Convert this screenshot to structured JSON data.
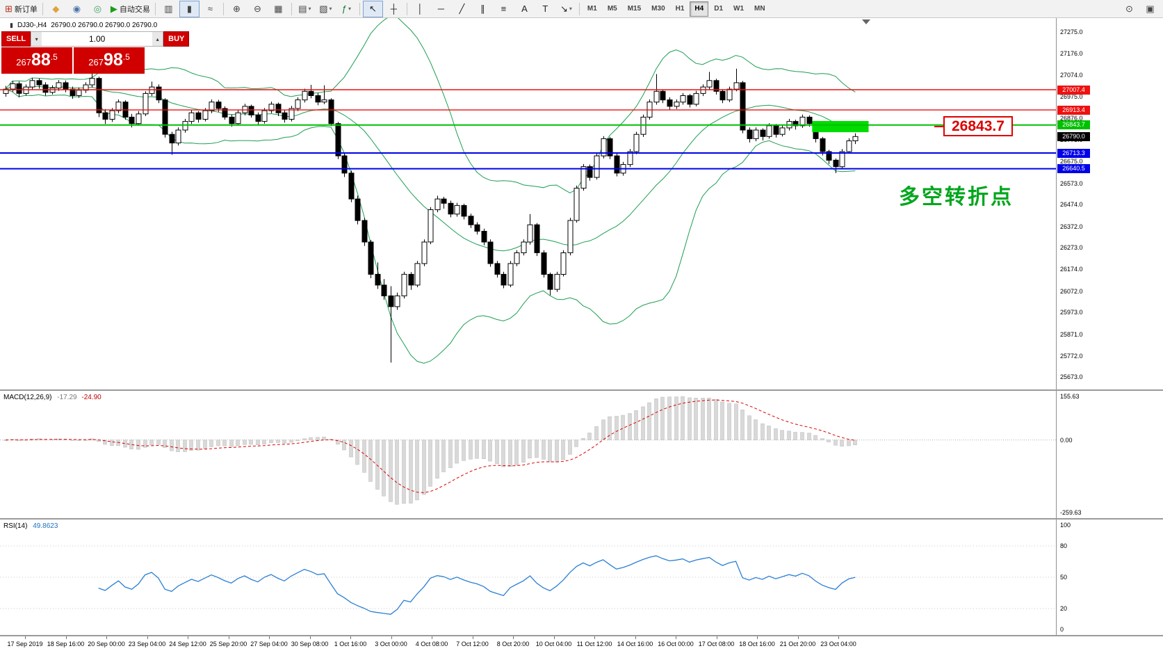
{
  "toolbar": {
    "items": [
      {
        "type": "icon",
        "name": "new-order-button",
        "glyph": "⊞",
        "color": "#b8321e",
        "label": "新订单"
      },
      {
        "type": "sep"
      },
      {
        "type": "icon",
        "name": "metaeditor-icon",
        "glyph": "◆",
        "color": "#e2a13c"
      },
      {
        "type": "icon",
        "name": "accounts-icon",
        "glyph": "◉",
        "color": "#4a76a8"
      },
      {
        "type": "icon",
        "name": "community-icon",
        "glyph": "◎",
        "color": "#3c9e62"
      },
      {
        "type": "icon",
        "name": "autotrading-button",
        "glyph": "▶",
        "color": "#1a9e1a",
        "label": "自动交易"
      },
      {
        "type": "sep"
      },
      {
        "type": "icon",
        "name": "bar-chart-button",
        "glyph": "▥",
        "color": "#444444"
      },
      {
        "type": "icon",
        "name": "candlestick-chart-button",
        "glyph": "▮",
        "color": "#444444",
        "active": true
      },
      {
        "type": "icon",
        "name": "line-chart-button",
        "glyph": "≈",
        "color": "#444444"
      },
      {
        "type": "sep"
      },
      {
        "type": "icon",
        "name": "zoom-in-button",
        "glyph": "⊕",
        "color": "#444444"
      },
      {
        "type": "icon",
        "name": "zoom-out-button",
        "glyph": "⊖",
        "color": "#444444"
      },
      {
        "type": "icon",
        "name": "tile-windows-button",
        "glyph": "▦",
        "color": "#444444"
      },
      {
        "type": "sep"
      },
      {
        "type": "icon",
        "name": "new-chart-button",
        "glyph": "▤",
        "color": "#444444",
        "dropdown": true
      },
      {
        "type": "icon",
        "name": "profiles-button",
        "glyph": "▧",
        "color": "#444444",
        "dropdown": true
      },
      {
        "type": "icon",
        "name": "indicators-button",
        "glyph": "ƒ",
        "color": "#117a33",
        "dropdown": true
      },
      {
        "type": "sep"
      },
      {
        "type": "icon",
        "name": "cursor-button",
        "glyph": "↖",
        "color": "#222222",
        "active": true
      },
      {
        "type": "icon",
        "name": "crosshair-button",
        "glyph": "┼",
        "color": "#222222"
      },
      {
        "type": "sep"
      },
      {
        "type": "icon",
        "name": "vertical-line-button",
        "glyph": "│",
        "color": "#222222"
      },
      {
        "type": "icon",
        "name": "horizontal-line-button",
        "glyph": "─",
        "color": "#222222"
      },
      {
        "type": "icon",
        "name": "trendline-button",
        "glyph": "╱",
        "color": "#222222"
      },
      {
        "type": "icon",
        "name": "equidistant-channel-button",
        "glyph": "∥",
        "color": "#222222"
      },
      {
        "type": "icon",
        "name": "fibonacci-button",
        "glyph": "≡",
        "color": "#222222"
      },
      {
        "type": "icon",
        "name": "text-button",
        "glyph": "A",
        "color": "#222222"
      },
      {
        "type": "icon",
        "name": "text-label-button",
        "glyph": "T",
        "color": "#222222"
      },
      {
        "type": "icon",
        "name": "arrows-button",
        "glyph": "↘",
        "color": "#222222",
        "dropdown": true
      },
      {
        "type": "sep"
      }
    ],
    "timeframes": [
      "M1",
      "M5",
      "M15",
      "M30",
      "H1",
      "H4",
      "D1",
      "W1",
      "MN"
    ],
    "active_timeframe": "H4",
    "right_icons": [
      {
        "name": "search-icon",
        "glyph": "⊙"
      },
      {
        "name": "window-icon",
        "glyph": "▣"
      }
    ]
  },
  "chart": {
    "icon_glyph": "▮",
    "symbol_label": "DJ30-,H4",
    "ohlc_label": "26790.0 26790.0 26790.0 26790.0",
    "current_price": "26790.0"
  },
  "one_click": {
    "sell_label": "SELL",
    "buy_label": "BUY",
    "volume": "1.00",
    "volume_dropdown_icon": "▾",
    "volume_up_icon": "▴",
    "sell_price_pre": "267",
    "sell_price_big": "88",
    "sell_price_frac": ".5",
    "buy_price_pre": "267",
    "buy_price_big": "98",
    "buy_price_frac": ".5"
  },
  "indicators": {
    "macd": {
      "title": "MACD(12,26,9)",
      "value_main": "-17.29",
      "value_signal": "-24.90",
      "axis": [
        "155.63",
        "0.00",
        "-259.63"
      ]
    },
    "rsi": {
      "title": "RSI(14)",
      "value": "49.8623",
      "axis": [
        "100",
        "80",
        "50",
        "20",
        "0"
      ]
    }
  },
  "annotations": {
    "turning_point_text": "多空转折点",
    "price_callout": "26843.7"
  },
  "chart_data": {
    "type": "candlestick",
    "symbol": "DJ30-",
    "timeframe": "H4",
    "ylim": [
      25615,
      27340
    ],
    "y_ticks": [
      "27275.0",
      "27176.0",
      "27074.0",
      "26975.0",
      "26876.0",
      "26775.0",
      "26675.0",
      "26573.0",
      "26474.0",
      "26372.0",
      "26273.0",
      "26174.0",
      "26072.0",
      "25973.0",
      "25871.0",
      "25772.0",
      "25673.0"
    ],
    "x_labels": [
      "17 Sep 2019",
      "18 Sep 16:00",
      "20 Sep 00:00",
      "23 Sep 04:00",
      "24 Sep 12:00",
      "25 Sep 20:00",
      "27 Sep 04:00",
      "30 Sep 08:00",
      "1 Oct 16:00",
      "3 Oct 00:00",
      "4 Oct 08:00",
      "7 Oct 12:00",
      "8 Oct 20:00",
      "10 Oct 04:00",
      "11 Oct 12:00",
      "14 Oct 16:00",
      "16 Oct 00:00",
      "17 Oct 08:00",
      "18 Oct 16:00",
      "21 Oct 20:00",
      "23 Oct 04:00"
    ],
    "overlays": [
      {
        "name": "Bollinger Bands",
        "period": 20,
        "deviation": 2,
        "color": "#1c9e52"
      }
    ],
    "candles": [
      [
        26990,
        27025,
        26975,
        27010
      ],
      [
        27010,
        27048,
        26998,
        27035
      ],
      [
        27035,
        27045,
        26972,
        26990
      ],
      [
        26990,
        27032,
        26980,
        27020
      ],
      [
        27020,
        27062,
        27008,
        27050
      ],
      [
        27050,
        27060,
        27012,
        27030
      ],
      [
        27030,
        27042,
        26980,
        26995
      ],
      [
        26995,
        27028,
        26985,
        27015
      ],
      [
        27015,
        27052,
        27002,
        27040
      ],
      [
        27040,
        27050,
        26995,
        27010
      ],
      [
        27010,
        27022,
        26965,
        26980
      ],
      [
        26980,
        27018,
        26970,
        27005
      ],
      [
        27005,
        27042,
        26992,
        27030
      ],
      [
        27030,
        27090,
        27018,
        27060
      ],
      [
        27060,
        27068,
        26880,
        26900
      ],
      [
        26900,
        26918,
        26848,
        26870
      ],
      [
        26870,
        26922,
        26858,
        26910
      ],
      [
        26910,
        26962,
        26898,
        26950
      ],
      [
        26950,
        26958,
        26868,
        26880
      ],
      [
        26880,
        26895,
        26832,
        26850
      ],
      [
        26850,
        26908,
        26840,
        26895
      ],
      [
        26895,
        27000,
        26885,
        26990
      ],
      [
        26990,
        27045,
        26978,
        27020
      ],
      [
        27020,
        27032,
        26945,
        26960
      ],
      [
        26960,
        26968,
        26785,
        26800
      ],
      [
        26800,
        26812,
        26705,
        26760
      ],
      [
        26760,
        26832,
        26748,
        26820
      ],
      [
        26820,
        26872,
        26808,
        26860
      ],
      [
        26860,
        26912,
        26848,
        26900
      ],
      [
        26900,
        26908,
        26855,
        26870
      ],
      [
        26870,
        26922,
        26860,
        26910
      ],
      [
        26910,
        26962,
        26898,
        26950
      ],
      [
        26950,
        26960,
        26905,
        26920
      ],
      [
        26920,
        26930,
        26868,
        26880
      ],
      [
        26880,
        26892,
        26835,
        26850
      ],
      [
        26850,
        26912,
        26840,
        26900
      ],
      [
        26900,
        26942,
        26888,
        26930
      ],
      [
        26930,
        26938,
        26878,
        26890
      ],
      [
        26890,
        26902,
        26845,
        26860
      ],
      [
        26860,
        26922,
        26850,
        26910
      ],
      [
        26910,
        26952,
        26898,
        26940
      ],
      [
        26940,
        26948,
        26885,
        26900
      ],
      [
        26900,
        26912,
        26855,
        26870
      ],
      [
        26870,
        26932,
        26860,
        26920
      ],
      [
        26920,
        26972,
        26908,
        26960
      ],
      [
        26960,
        27012,
        26948,
        27000
      ],
      [
        27000,
        27030,
        26968,
        26980
      ],
      [
        26980,
        26992,
        26935,
        26950
      ],
      [
        26950,
        27028,
        26940,
        26960
      ],
      [
        26960,
        26968,
        26838,
        26850
      ],
      [
        26850,
        26858,
        26685,
        26700
      ],
      [
        26700,
        26712,
        26602,
        26620
      ],
      [
        26620,
        26632,
        26485,
        26500
      ],
      [
        26500,
        26515,
        26382,
        26400
      ],
      [
        26400,
        26412,
        26282,
        26300
      ],
      [
        26300,
        26310,
        26132,
        26150
      ],
      [
        26150,
        26205,
        26082,
        26100
      ],
      [
        26100,
        26128,
        26032,
        26050
      ],
      [
        26050,
        26095,
        25740,
        26000
      ],
      [
        26000,
        26065,
        25985,
        26050
      ],
      [
        26050,
        26162,
        26038,
        26150
      ],
      [
        26150,
        26160,
        26078,
        26100
      ],
      [
        26100,
        26212,
        26090,
        26200
      ],
      [
        26200,
        26312,
        26188,
        26300
      ],
      [
        26300,
        26462,
        26290,
        26450
      ],
      [
        26450,
        26515,
        26438,
        26500
      ],
      [
        26500,
        26510,
        26455,
        26480
      ],
      [
        26480,
        26492,
        26415,
        26430
      ],
      [
        26430,
        26482,
        26418,
        26470
      ],
      [
        26470,
        26478,
        26405,
        26420
      ],
      [
        26420,
        26432,
        26365,
        26380
      ],
      [
        26380,
        26392,
        26335,
        26350
      ],
      [
        26350,
        26362,
        26285,
        26300
      ],
      [
        26300,
        26312,
        26185,
        26200
      ],
      [
        26200,
        26212,
        26135,
        26150
      ],
      [
        26150,
        26162,
        26085,
        26100
      ],
      [
        26100,
        26212,
        26090,
        26200
      ],
      [
        26200,
        26262,
        26188,
        26250
      ],
      [
        26250,
        26312,
        26238,
        26300
      ],
      [
        26300,
        26430,
        26288,
        26380
      ],
      [
        26380,
        26388,
        26235,
        26250
      ],
      [
        26250,
        26262,
        26135,
        26150
      ],
      [
        26150,
        26158,
        26053,
        26080
      ],
      [
        26080,
        26162,
        26068,
        26150
      ],
      [
        26150,
        26262,
        26140,
        26250
      ],
      [
        26250,
        26412,
        26238,
        26400
      ],
      [
        26400,
        26562,
        26390,
        26550
      ],
      [
        26550,
        26662,
        26538,
        26650
      ],
      [
        26650,
        26660,
        26585,
        26600
      ],
      [
        26600,
        26712,
        26590,
        26700
      ],
      [
        26700,
        26792,
        26688,
        26780
      ],
      [
        26780,
        26788,
        26685,
        26700
      ],
      [
        26700,
        26710,
        26605,
        26620
      ],
      [
        26620,
        26672,
        26608,
        26660
      ],
      [
        26660,
        26732,
        26648,
        26720
      ],
      [
        26720,
        26812,
        26708,
        26800
      ],
      [
        26800,
        26892,
        26788,
        26880
      ],
      [
        26880,
        26962,
        26868,
        26950
      ],
      [
        26950,
        27080,
        26938,
        27000
      ],
      [
        27000,
        27008,
        26945,
        26960
      ],
      [
        26960,
        26972,
        26915,
        26930
      ],
      [
        26930,
        26962,
        26918,
        26950
      ],
      [
        26950,
        26992,
        26938,
        26980
      ],
      [
        26980,
        26988,
        26925,
        26940
      ],
      [
        26940,
        27002,
        26930,
        26990
      ],
      [
        26990,
        27032,
        26978,
        27020
      ],
      [
        27020,
        27090,
        27008,
        27050
      ],
      [
        27050,
        27058,
        26985,
        27000
      ],
      [
        27000,
        27010,
        26945,
        26960
      ],
      [
        26960,
        27022,
        26950,
        27010
      ],
      [
        27010,
        27105,
        27000,
        27040
      ],
      [
        27040,
        27048,
        26805,
        26820
      ],
      [
        26820,
        26832,
        26762,
        26780
      ],
      [
        26780,
        26832,
        26768,
        26820
      ],
      [
        26820,
        26828,
        26772,
        26790
      ],
      [
        26790,
        26852,
        26780,
        26840
      ],
      [
        26840,
        26848,
        26785,
        26800
      ],
      [
        26800,
        26842,
        26790,
        26830
      ],
      [
        26830,
        26872,
        26818,
        26860
      ],
      [
        26860,
        26868,
        26822,
        26840
      ],
      [
        26840,
        26892,
        26830,
        26880
      ],
      [
        26880,
        26888,
        26835,
        26850
      ],
      [
        26850,
        26858,
        26762,
        26780
      ],
      [
        26780,
        26788,
        26702,
        26720
      ],
      [
        26720,
        26728,
        26662,
        26680
      ],
      [
        26680,
        26688,
        26620,
        26650
      ],
      [
        26650,
        26732,
        26640,
        26720
      ],
      [
        26720,
        26782,
        26710,
        26770
      ],
      [
        26770,
        26805,
        26755,
        26790
      ]
    ],
    "price_lines": [
      {
        "price": 27007.4,
        "label": "27007.4",
        "color": "#ee1111",
        "width": 1.4
      },
      {
        "price": 26913.4,
        "label": "26913.4",
        "color": "#ee1111",
        "width": 1.4
      },
      {
        "price": 26843.7,
        "label": "26843.7",
        "color": "#00c000",
        "width": 2
      },
      {
        "price": 26713.3,
        "label": "26713.3",
        "color": "#0000e8",
        "width": 2
      },
      {
        "price": 26640.5,
        "label": "26640.5",
        "color": "#0000e8",
        "width": 2
      }
    ],
    "current_price_tag": {
      "price": 26790.0,
      "label": "26790.0",
      "color": "#000000"
    },
    "rectangle": {
      "index_start": 121.5,
      "index_end": 130,
      "price_top": 26862,
      "price_bottom": 26810,
      "color": "#00dc00"
    },
    "macd": {
      "ylim": [
        -259.63,
        155.63
      ]
    },
    "rsi": {
      "levels": [
        80,
        50,
        20
      ]
    }
  }
}
